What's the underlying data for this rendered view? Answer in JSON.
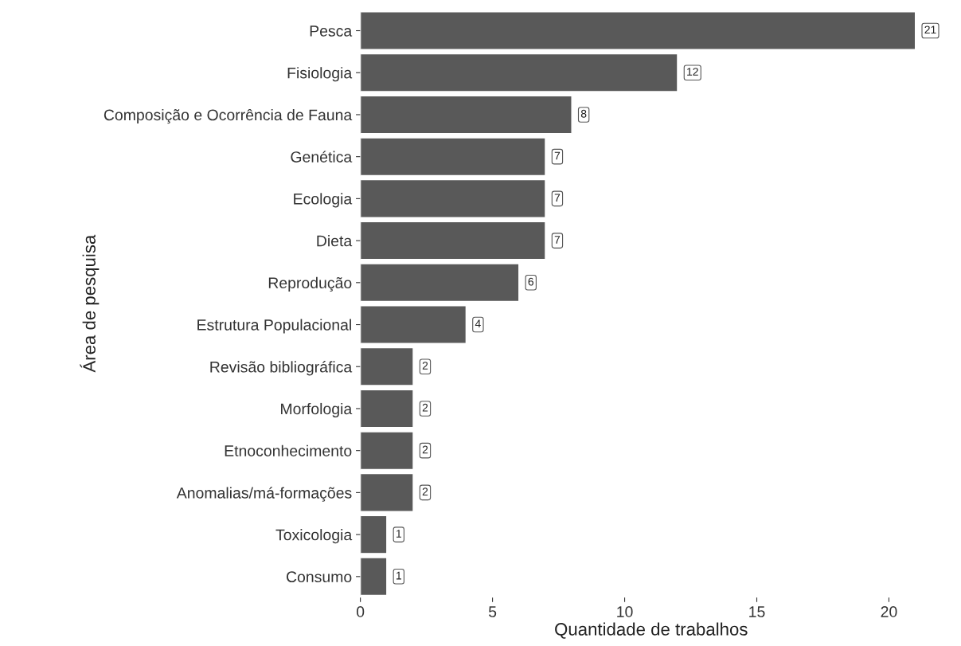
{
  "chart_data": {
    "type": "bar",
    "orientation": "horizontal",
    "xlabel": "Quantidade de trabalhos",
    "ylabel": "Área de pesquisa",
    "categories": [
      "Pesca",
      "Fisiologia",
      "Composição e Ocorrência de Fauna",
      "Genética",
      "Ecologia",
      "Dieta",
      "Reprodução",
      "Estrutura Populacional",
      "Revisão bibliográfica",
      "Morfologia",
      "Etnoconhecimento",
      "Anomalias/má-formações",
      "Toxicologia",
      "Consumo"
    ],
    "values": [
      21,
      12,
      8,
      7,
      7,
      7,
      6,
      4,
      2,
      2,
      2,
      2,
      1,
      1
    ],
    "color": "#595959",
    "xlim": [
      0,
      22
    ],
    "xticks": [
      0,
      5,
      10,
      15,
      20
    ],
    "grid": false,
    "data_labels": true
  }
}
